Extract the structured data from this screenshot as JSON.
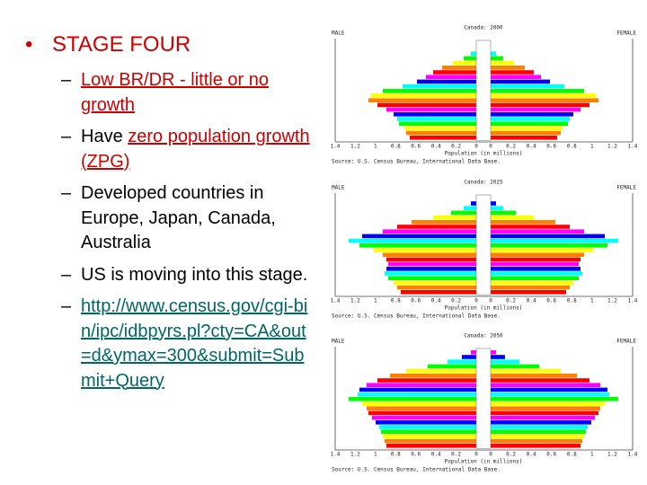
{
  "slide": {
    "heading": "STAGE FOUR",
    "items": [
      {
        "parts": [
          {
            "text": "Low BR/DR  - little or no growth",
            "style": "link-red"
          }
        ]
      },
      {
        "parts": [
          {
            "text": "Have ",
            "style": "plain"
          },
          {
            "text": "zero population growth (ZPG)",
            "style": "link-red"
          }
        ]
      },
      {
        "parts": [
          {
            "text": "Developed countries in Europe, Japan, Canada, Australia",
            "style": "plain"
          }
        ]
      },
      {
        "parts": [
          {
            "text": "US is moving into this stage.",
            "style": "plain"
          }
        ]
      },
      {
        "parts": [
          {
            "text": "http://www.census.gov/cgi-bin/ipc/idbpyrs.pl?cty=CA&out=d&ymax=300&submit=Submit+Query",
            "style": "link-teal"
          }
        ]
      }
    ]
  },
  "pyramids": [
    {
      "title": "Canada: 2000",
      "left_label": "MALE",
      "right_label": "FEMALE",
      "x_label": "Population (in millions)",
      "source": "Source: U.S. Census Bureau, International Data Base.",
      "ticks": [
        "1.4",
        "1.2",
        "1",
        "0.8",
        "0.6",
        "0.4",
        "0.2",
        "0",
        "0",
        "0.2",
        "0.4",
        "0.6",
        "0.8",
        "1",
        "1.2",
        "1.4"
      ]
    },
    {
      "title": "Canada: 2025",
      "left_label": "MALE",
      "right_label": "FEMALE",
      "x_label": "Population (in millions)",
      "source": "Source: U.S. Census Bureau, International Data Base.",
      "ticks": [
        "1.4",
        "1.2",
        "1",
        "0.8",
        "0.6",
        "0.4",
        "0.2",
        "0",
        "0",
        "0.2",
        "0.4",
        "0.6",
        "0.8",
        "1",
        "1.2",
        "1.4"
      ]
    },
    {
      "title": "Canada: 2050",
      "left_label": "MALE",
      "right_label": "FEMALE",
      "x_label": "Population (in millions)",
      "source": "Source: U.S. Census Bureau, International Data Base.",
      "ticks": [
        "1.4",
        "1.2",
        "1",
        "0.8",
        "0.6",
        "0.4",
        "0.2",
        "0",
        "0",
        "0.2",
        "0.4",
        "0.6",
        "0.8",
        "1",
        "1.2",
        "1.4"
      ]
    }
  ]
}
